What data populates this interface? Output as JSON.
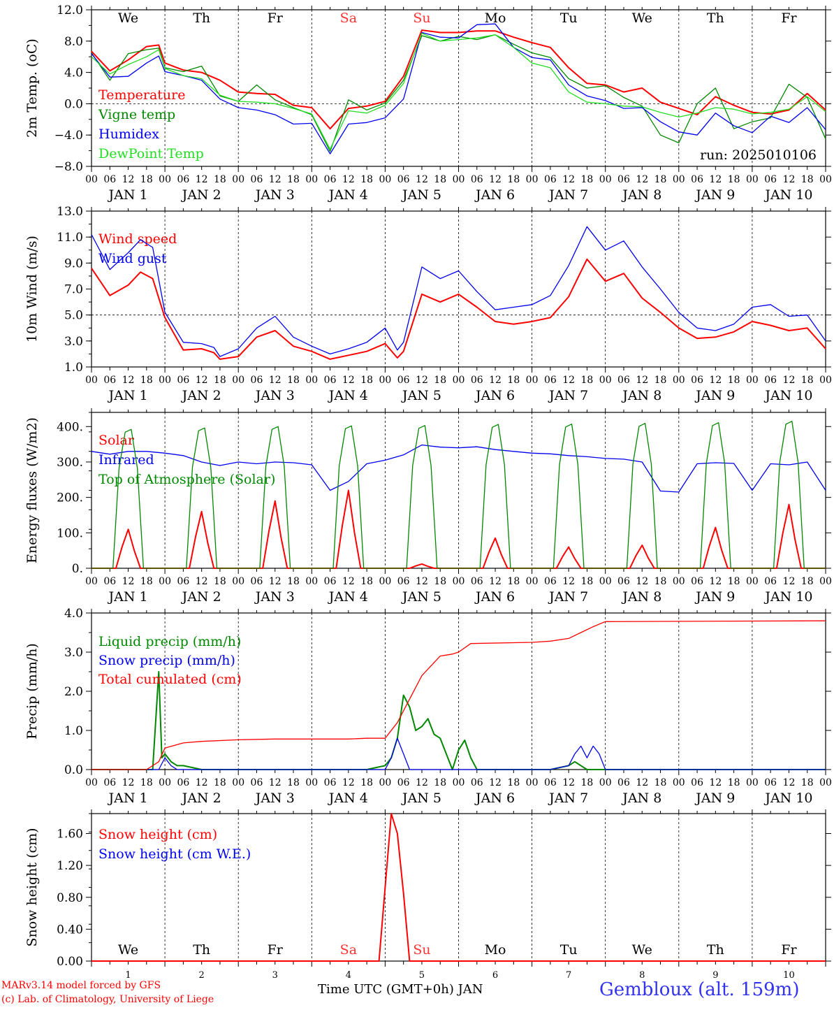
{
  "run_label": "run: 2025010106",
  "footer": {
    "credit_line1": "MARv3.14 model forced by GFS",
    "credit_line2": "(c) Lab. of Climatology, University of Liege",
    "xlabel": "Time UTC (GMT+0h) JAN",
    "station": "Gembloux (alt. 159m)"
  },
  "days": [
    "We",
    "Th",
    "Fr",
    "Sa",
    "Su",
    "Mo",
    "Tu",
    "We",
    "Th",
    "Fr"
  ],
  "weekend_day_color": "#ff3333",
  "date_labels": [
    "JAN  1",
    "JAN  2",
    "JAN  3",
    "JAN  4",
    "JAN  5",
    "JAN  6",
    "JAN  7",
    "JAN  8",
    "JAN  9",
    "JAN 10"
  ],
  "day_numbers": [
    "1",
    "2",
    "3",
    "4",
    "5",
    "6",
    "7",
    "8",
    "9",
    "10"
  ],
  "hour_ticks": [
    "00",
    "06",
    "12",
    "18"
  ],
  "colors": {
    "red": "#ff0000",
    "green": "#008800",
    "blue": "#0000ee",
    "lightgreen": "#22dd22",
    "grid": "#000000"
  },
  "chart_data": [
    {
      "id": "temp",
      "type": "line",
      "ylabel": "2m Temp. (oC)",
      "ylim": [
        -8,
        12
      ],
      "yticks": [
        "12.0",
        "8.0",
        "4.0",
        "0.0",
        "−4.0",
        "−8.0"
      ],
      "ref_line": 0,
      "show_days": true,
      "x_unit": "hours since JAN 1 00 UTC",
      "series": [
        {
          "name": "Temperature",
          "color": "#ff0000",
          "x": [
            0,
            6,
            12,
            18,
            22,
            24,
            30,
            36,
            42,
            48,
            54,
            60,
            66,
            72,
            78,
            84,
            90,
            96,
            102,
            108,
            114,
            120,
            126,
            132,
            138,
            144,
            150,
            156,
            162,
            168,
            174,
            180,
            186,
            192,
            198,
            204,
            210,
            216,
            222,
            228,
            234,
            240
          ],
          "y": [
            6.7,
            4.2,
            5.6,
            7.3,
            7.5,
            5.2,
            4.3,
            4.0,
            3.0,
            1.5,
            1.3,
            1.2,
            -0.2,
            -0.5,
            -3.2,
            -0.6,
            -0.3,
            0.3,
            3.5,
            9.4,
            9.1,
            9.1,
            9.3,
            9.3,
            8.5,
            7.8,
            7.2,
            4.6,
            2.6,
            2.4,
            1.5,
            2.0,
            0.2,
            -0.6,
            -1.4,
            0.9,
            -0.2,
            -1.1,
            -1.3,
            -0.8,
            1.3,
            -0.8
          ]
        },
        {
          "name": "Vigne temp",
          "color": "#008800",
          "x": [
            0,
            6,
            12,
            18,
            22,
            24,
            30,
            36,
            42,
            48,
            54,
            60,
            66,
            72,
            78,
            84,
            90,
            96,
            102,
            108,
            114,
            120,
            126,
            132,
            138,
            144,
            150,
            156,
            162,
            168,
            174,
            180,
            186,
            192,
            198,
            204,
            210,
            216,
            222,
            228,
            234,
            240
          ],
          "y": [
            6.5,
            3.0,
            6.4,
            6.9,
            7.1,
            4.6,
            4.1,
            4.8,
            1.0,
            0.3,
            2.4,
            0.5,
            -0.5,
            -1.4,
            -6.1,
            0.5,
            -0.8,
            0.1,
            3.0,
            8.7,
            8.0,
            8.6,
            8.2,
            8.8,
            7.6,
            6.5,
            5.9,
            3.2,
            2.0,
            2.3,
            0.8,
            -0.3,
            -4.0,
            -5.0,
            0.0,
            2.0,
            -3.2,
            -2.3,
            -1.8,
            2.5,
            0.8,
            -4.5
          ]
        },
        {
          "name": "Humidex",
          "color": "#0000ee",
          "x": [
            0,
            6,
            12,
            18,
            22,
            24,
            30,
            36,
            42,
            48,
            54,
            60,
            66,
            72,
            78,
            84,
            90,
            96,
            102,
            108,
            114,
            120,
            126,
            132,
            138,
            144,
            150,
            156,
            162,
            168,
            174,
            180,
            186,
            192,
            198,
            204,
            210,
            216,
            222,
            228,
            234,
            240
          ],
          "y": [
            6.4,
            3.4,
            3.5,
            5.2,
            6.1,
            4.1,
            3.6,
            3.0,
            0.6,
            -0.5,
            -0.8,
            -1.4,
            -2.6,
            -2.5,
            -6.4,
            -2.6,
            -2.4,
            -1.8,
            0.6,
            9.1,
            8.5,
            8.4,
            10.1,
            10.2,
            7.2,
            5.9,
            5.6,
            2.4,
            1.0,
            0.4,
            -0.6,
            -0.5,
            -2.3,
            -3.6,
            -4.0,
            -1.2,
            -2.8,
            -3.7,
            -1.6,
            -2.4,
            -0.5,
            -3.3
          ]
        },
        {
          "name": "DewPoint Temp",
          "color": "#22dd22",
          "x": [
            0,
            6,
            12,
            18,
            22,
            24,
            30,
            36,
            42,
            48,
            54,
            60,
            66,
            72,
            78,
            84,
            90,
            96,
            102,
            108,
            114,
            120,
            126,
            132,
            138,
            144,
            150,
            156,
            162,
            168,
            174,
            180,
            186,
            192,
            198,
            204,
            210,
            216,
            222,
            228,
            234,
            240
          ],
          "y": [
            6.0,
            3.8,
            5.0,
            6.0,
            6.9,
            4.5,
            3.6,
            3.2,
            1.1,
            0.3,
            0.2,
            0.0,
            -0.6,
            -1.3,
            -5.8,
            -0.9,
            -1.2,
            -0.2,
            2.6,
            9.0,
            8.0,
            8.2,
            8.4,
            8.8,
            7.2,
            5.2,
            4.6,
            1.5,
            0.2,
            0.0,
            -0.3,
            -0.4,
            -1.1,
            -1.7,
            -1.2,
            -0.5,
            -0.7,
            -1.3,
            -1.1,
            -0.7,
            0.9,
            -1.0
          ]
        }
      ]
    },
    {
      "id": "wind",
      "type": "line",
      "ylabel": "10m Wind (m/s)",
      "ylim": [
        1,
        13
      ],
      "yticks": [
        "13.0",
        "11.0",
        "9.0",
        "7.0",
        "5.0",
        "3.0",
        "1.0"
      ],
      "ref_line": 5,
      "show_days": false,
      "series": [
        {
          "name": "Wind speed",
          "color": "#ff0000",
          "x": [
            0,
            6,
            12,
            16,
            20,
            24,
            30,
            36,
            40,
            42,
            48,
            54,
            60,
            66,
            72,
            78,
            84,
            90,
            96,
            100,
            102,
            108,
            114,
            120,
            126,
            132,
            138,
            144,
            150,
            156,
            162,
            168,
            174,
            180,
            186,
            192,
            198,
            204,
            210,
            216,
            222,
            228,
            234,
            240
          ],
          "y": [
            8.6,
            6.5,
            7.3,
            8.3,
            7.8,
            4.8,
            2.3,
            2.4,
            2.1,
            1.6,
            1.8,
            3.3,
            3.8,
            2.6,
            2.2,
            1.6,
            1.9,
            2.2,
            2.8,
            1.7,
            2.2,
            6.6,
            6.0,
            6.6,
            5.6,
            4.5,
            4.3,
            4.5,
            4.8,
            6.4,
            9.3,
            7.6,
            8.2,
            6.3,
            5.2,
            4.0,
            3.2,
            3.3,
            3.7,
            4.5,
            4.2,
            3.8,
            4.0,
            2.4
          ]
        },
        {
          "name": "Wind gust",
          "color": "#0000ee",
          "x": [
            0,
            6,
            12,
            16,
            20,
            24,
            30,
            36,
            40,
            42,
            48,
            54,
            60,
            66,
            72,
            78,
            84,
            90,
            96,
            100,
            102,
            108,
            114,
            120,
            126,
            132,
            138,
            144,
            150,
            156,
            162,
            168,
            174,
            180,
            186,
            192,
            198,
            204,
            210,
            216,
            222,
            228,
            234,
            240
          ],
          "y": [
            11.2,
            8.5,
            9.8,
            10.8,
            10.2,
            5.2,
            2.9,
            2.8,
            2.5,
            1.8,
            2.4,
            4.0,
            4.9,
            3.3,
            2.6,
            2.0,
            2.4,
            2.9,
            4.0,
            2.3,
            2.9,
            8.7,
            7.8,
            8.4,
            6.8,
            5.4,
            5.6,
            5.8,
            6.5,
            8.8,
            11.8,
            10.0,
            10.7,
            8.7,
            7.0,
            5.2,
            4.0,
            3.8,
            4.3,
            5.6,
            5.8,
            4.9,
            5.0,
            3.0
          ]
        }
      ]
    },
    {
      "id": "flux",
      "type": "line",
      "ylabel": "Energy fluxes (W/m2)",
      "ylim": [
        0,
        440
      ],
      "yticks": [
        "400.",
        "300.",
        "200.",
        "100.",
        "0."
      ],
      "ref_line": null,
      "show_days": false,
      "series": [
        {
          "name": "Solar",
          "color": "#ff0000",
          "day_peaks": [
            110,
            160,
            190,
            220,
            12,
            85,
            60,
            65,
            115,
            180
          ],
          "x": [],
          "y": []
        },
        {
          "name": "Infrared",
          "color": "#0000ee",
          "x": [
            0,
            6,
            12,
            18,
            24,
            30,
            36,
            42,
            48,
            54,
            60,
            66,
            72,
            78,
            84,
            90,
            96,
            102,
            108,
            114,
            120,
            126,
            132,
            138,
            144,
            150,
            156,
            162,
            168,
            174,
            180,
            186,
            192,
            198,
            204,
            210,
            216,
            222,
            228,
            234,
            240
          ],
          "y": [
            330,
            322,
            330,
            330,
            325,
            318,
            300,
            290,
            300,
            295,
            300,
            298,
            292,
            220,
            245,
            295,
            305,
            320,
            348,
            342,
            340,
            343,
            335,
            330,
            325,
            323,
            318,
            315,
            310,
            308,
            300,
            218,
            215,
            295,
            298,
            296,
            220,
            295,
            292,
            300,
            220
          ]
        },
        {
          "name": "Top of Atmosphere (Solar)",
          "color": "#008800",
          "day_peaks": [
            392,
            396,
            400,
            402,
            403,
            406,
            407,
            409,
            411,
            415
          ],
          "x": [],
          "y": []
        }
      ]
    },
    {
      "id": "precip",
      "type": "line",
      "ylabel": "Precip (mm/h)",
      "ylim": [
        0,
        4
      ],
      "yticks": [
        "4.0",
        "3.0",
        "2.0",
        "1.0",
        "0.0"
      ],
      "ref_line": null,
      "show_days": false,
      "series": [
        {
          "name": "Liquid precip (mm/h)",
          "color": "#008800",
          "x": [
            0,
            20,
            22,
            23,
            24,
            26,
            28,
            30,
            36,
            48,
            60,
            72,
            90,
            96,
            98,
            100,
            102,
            104,
            106,
            108,
            110,
            112,
            114,
            118,
            120,
            122,
            124,
            126,
            150,
            156,
            158,
            162,
            168,
            240
          ],
          "y": [
            0,
            0,
            2.5,
            0.3,
            0.4,
            0.2,
            0.1,
            0.1,
            0,
            0,
            0,
            0,
            0,
            0.1,
            0.3,
            0.8,
            1.9,
            1.6,
            1.0,
            1.1,
            1.3,
            0.9,
            0.8,
            0,
            0.5,
            0.75,
            0.3,
            0,
            0,
            0.1,
            0.2,
            0,
            0,
            0
          ]
        },
        {
          "name": "Snow precip (mm/h)",
          "color": "#0000ee",
          "x": [
            0,
            22,
            24,
            26,
            28,
            96,
            98,
            100,
            102,
            104,
            150,
            156,
            158,
            160,
            162,
            164,
            166,
            168,
            240
          ],
          "y": [
            0,
            0,
            0.3,
            0.1,
            0,
            0,
            0.3,
            0.8,
            0.4,
            0,
            0,
            0.1,
            0.4,
            0.6,
            0.3,
            0.6,
            0.4,
            0,
            0
          ]
        },
        {
          "name": "Total cumulated (cm)",
          "color": "#ff0000",
          "x": [
            0,
            18,
            22,
            24,
            30,
            36,
            48,
            60,
            72,
            84,
            90,
            96,
            100,
            104,
            108,
            114,
            118,
            120,
            124,
            144,
            150,
            156,
            160,
            164,
            168,
            240
          ],
          "y": [
            0,
            0,
            0.2,
            0.55,
            0.68,
            0.72,
            0.76,
            0.78,
            0.78,
            0.78,
            0.8,
            0.8,
            1.2,
            1.8,
            2.4,
            2.9,
            2.95,
            3.0,
            3.22,
            3.25,
            3.28,
            3.35,
            3.5,
            3.65,
            3.78,
            3.8
          ]
        }
      ]
    },
    {
      "id": "snow",
      "type": "line",
      "ylabel": "Snow height (cm)",
      "ylim": [
        0,
        1.85
      ],
      "yticks": [
        "1.60",
        "1.20",
        "0.80",
        "0.40",
        "0.00"
      ],
      "ref_line": null,
      "show_days": true,
      "series": [
        {
          "name": "Snow height (cm)",
          "color": "#ff0000",
          "x": [
            0,
            94,
            98,
            100,
            102,
            104,
            240
          ],
          "y": [
            0,
            0,
            1.85,
            1.6,
            0.85,
            0,
            0
          ]
        },
        {
          "name": "Snow height (cm W.E.)",
          "color": "#0000ee",
          "x": [],
          "y": []
        }
      ]
    }
  ]
}
